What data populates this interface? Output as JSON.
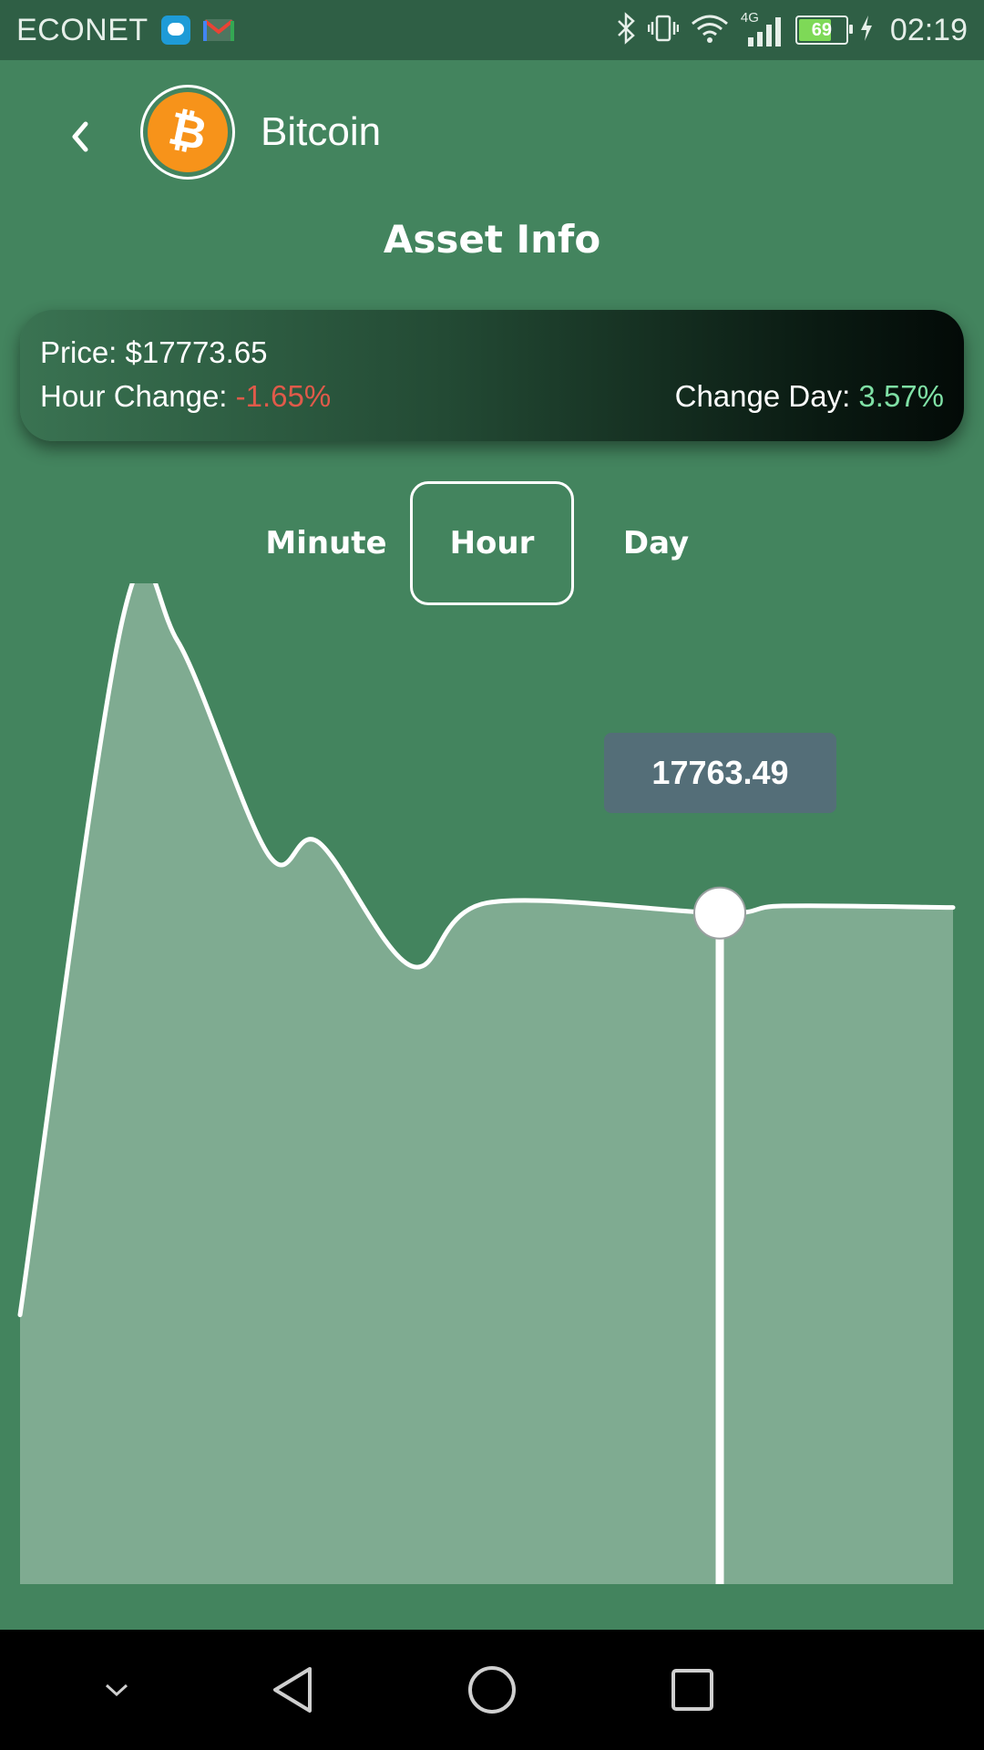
{
  "status_bar": {
    "carrier": "ECONET",
    "network": "4G",
    "battery": "69",
    "time": "02:19"
  },
  "header": {
    "coin_name": "Bitcoin",
    "section_title": "Asset Info"
  },
  "info": {
    "price_label": "Price: ",
    "price_value": "$17773.65",
    "hour_change_label": "Hour Change: ",
    "hour_change_value": "-1.65%",
    "day_change_label": "Change Day: ",
    "day_change_value": "3.57%"
  },
  "tabs": [
    {
      "label": "Minute",
      "active": false
    },
    {
      "label": "Hour",
      "active": true
    },
    {
      "label": "Day",
      "active": false
    }
  ],
  "colors": {
    "background": "#43845e",
    "negative": "#e05a4a",
    "positive": "#7fe0a5",
    "coin": "#f7931a",
    "tooltip": "#546e78"
  },
  "chart_data": {
    "type": "area",
    "selected_value": "17763.49",
    "values": [
      17510,
      17950,
      17935,
      17800,
      17808,
      17730,
      17770,
      17763.49,
      17768,
      17767
    ]
  }
}
